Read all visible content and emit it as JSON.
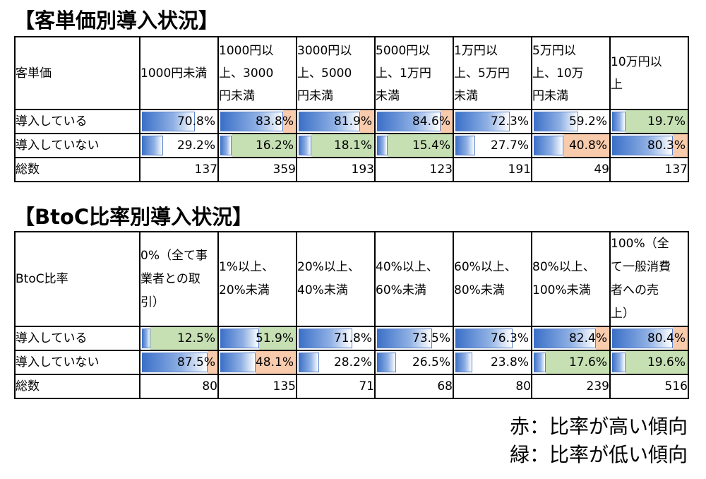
{
  "table1": {
    "title": "【客単価別導入状況】",
    "header_label": "客単価",
    "categories": [
      "1000円未満",
      "1000円以\n上、3000\n円未満",
      "3000円以\n上、5000\n円未満",
      "5000円以\n上、1万円\n未満",
      "1万円以\n上、5万円\n未満",
      "5万円以\n上、10万\n円未満",
      "10万円以\n上"
    ],
    "rows": [
      {
        "label": "導入している",
        "values": [
          "70.8%",
          "83.8%",
          "81.9%",
          "84.6%",
          "72.3%",
          "59.2%",
          "19.7%"
        ],
        "fractions": [
          0.708,
          0.838,
          0.819,
          0.846,
          0.723,
          0.592,
          0.197
        ],
        "highlight": [
          "",
          "red",
          "red",
          "red",
          "",
          "",
          "green"
        ]
      },
      {
        "label": "導入していない",
        "values": [
          "29.2%",
          "16.2%",
          "18.1%",
          "15.4%",
          "27.7%",
          "40.8%",
          "80.3%"
        ],
        "fractions": [
          0.292,
          0.162,
          0.181,
          0.154,
          0.277,
          0.408,
          0.803
        ],
        "highlight": [
          "",
          "green",
          "green",
          "green",
          "",
          "red",
          "red"
        ]
      }
    ],
    "total_label": "総数",
    "totals": [
      "137",
      "359",
      "193",
      "123",
      "191",
      "49",
      "137"
    ]
  },
  "table2": {
    "title": "【BtoC比率別導入状況】",
    "header_label": "BtoC比率",
    "categories": [
      "0%（全て事\n業者との取\n引）",
      "1%以上、\n20%未満",
      "20%以上、\n40%未満",
      "40%以上、\n60%未満",
      "60%以上、\n80%未満",
      "80%以上、\n100%未満",
      "100%（全\nて一般消費\n者への売\n上）"
    ],
    "rows": [
      {
        "label": "導入している",
        "values": [
          "12.5%",
          "51.9%",
          "71.8%",
          "73.5%",
          "76.3%",
          "82.4%",
          "80.4%"
        ],
        "fractions": [
          0.125,
          0.519,
          0.718,
          0.735,
          0.763,
          0.824,
          0.804
        ],
        "highlight": [
          "green",
          "green",
          "",
          "",
          "",
          "red",
          "red"
        ]
      },
      {
        "label": "導入していない",
        "values": [
          "87.5%",
          "48.1%",
          "28.2%",
          "26.5%",
          "23.8%",
          "17.6%",
          "19.6%"
        ],
        "fractions": [
          0.875,
          0.481,
          0.282,
          0.265,
          0.238,
          0.176,
          0.196
        ],
        "highlight": [
          "red",
          "red",
          "",
          "",
          "",
          "green",
          "green"
        ]
      }
    ],
    "total_label": "総数",
    "totals": [
      "80",
      "135",
      "71",
      "68",
      "80",
      "239",
      "516"
    ]
  },
  "legend": {
    "red": "赤：比率が高い傾向",
    "green": "緑：比率が低い傾向"
  },
  "colors": {
    "red_highlight": "#f8cbad",
    "green_highlight": "#c6e0b4",
    "bar": "#4f7fd0"
  }
}
